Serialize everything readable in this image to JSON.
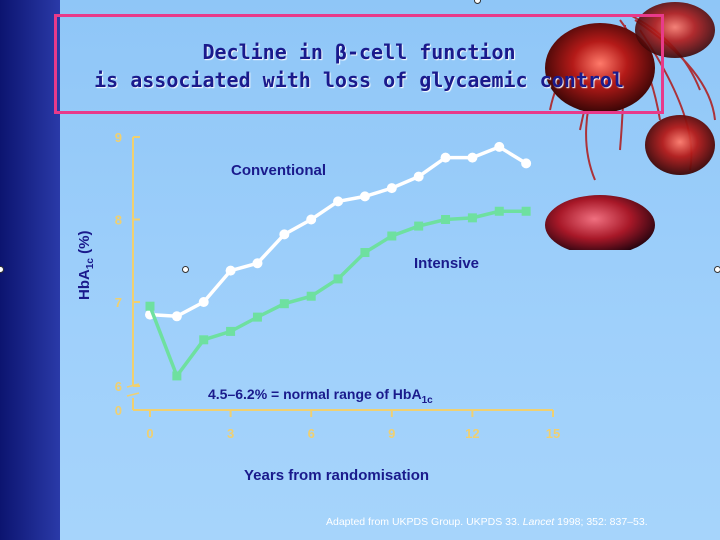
{
  "title": {
    "line1": "Decline in β-cell function",
    "line2": "is associated with loss of glycaemic control"
  },
  "colors": {
    "sidebar": "#1c2a8e",
    "panel": "#9fd0fb",
    "title_border": "#e83a8a",
    "title_text": "#1a1a8c",
    "axis": "#f0d070",
    "conventional": "#ffffff",
    "intensive": "#6ee0a0"
  },
  "normal_range": {
    "prefix": "4.5–6.2% = normal range of HbA",
    "sub": "1c"
  },
  "citation": {
    "prefix": "Adapted from UKPDS Group. UKPDS 33.",
    "journal": "Lancet",
    "suffix": "1998; 352: 837–53."
  },
  "chart_data": {
    "type": "line",
    "title": "Decline in β-cell function is associated with loss of glycaemic control",
    "xlabel": "Years from randomisation",
    "ylabel": "HbA1c (%)",
    "xlim": [
      0,
      15
    ],
    "ylim": [
      6,
      9
    ],
    "xticks": [
      0,
      3,
      6,
      9,
      12,
      15
    ],
    "yticks": [
      6,
      7,
      8,
      9
    ],
    "ytick_labels": [
      "6",
      "7",
      "8",
      "9"
    ],
    "axis_break": true,
    "annotation": "4.5–6.2% = normal range of HbA1c",
    "series": [
      {
        "name": "Conventional",
        "x": [
          0,
          1,
          2,
          3,
          4,
          5,
          6,
          7,
          8,
          9,
          10,
          11,
          12,
          13,
          14
        ],
        "y": [
          6.85,
          6.83,
          7.0,
          7.38,
          7.47,
          7.82,
          8.0,
          8.22,
          8.28,
          8.38,
          8.52,
          8.75,
          8.75,
          8.88,
          8.68
        ]
      },
      {
        "name": "Intensive",
        "x": [
          0,
          1,
          2,
          3,
          4,
          5,
          6,
          7,
          8,
          9,
          10,
          11,
          12,
          13,
          14
        ],
        "y": [
          6.95,
          6.12,
          6.55,
          6.65,
          6.82,
          6.98,
          7.07,
          7.28,
          7.6,
          7.8,
          7.92,
          8.0,
          8.02,
          8.1,
          8.1
        ]
      }
    ]
  }
}
